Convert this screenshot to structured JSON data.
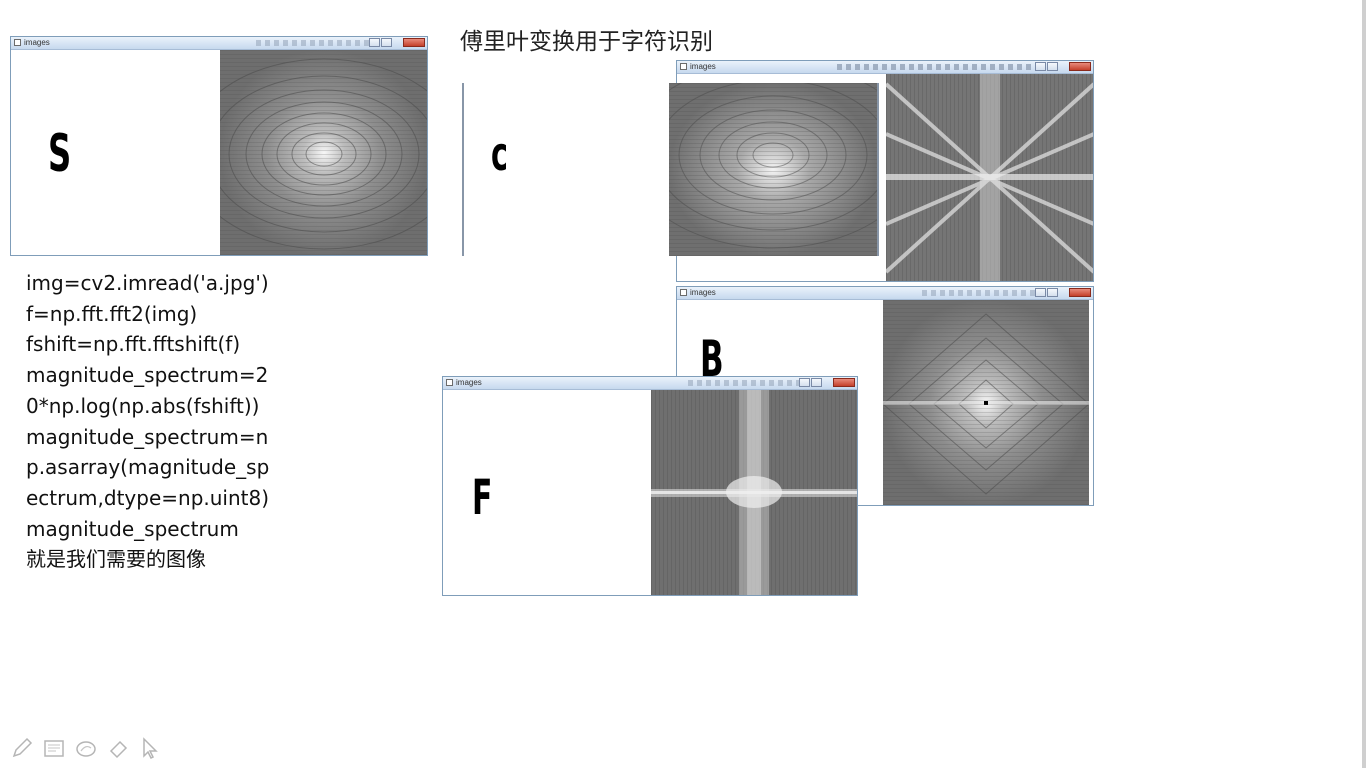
{
  "slide": {
    "title": "傅里叶变换用于字符识别"
  },
  "code": {
    "lines": [
      "img=cv2.imread('a.jpg')",
      "f=np.fft.fft2(img)",
      "fshift=np.fft.fftshift(f)",
      "magnitude_spectrum=20*np.log(np.abs(fshift))",
      "magnitude_spectrum=np.asarray(magnitude_spectrum,dtype=np.uint8)",
      "magnitude_spectrum",
      "就是我们需要的图像"
    ]
  },
  "windows": {
    "s": {
      "title": "images",
      "letter": "S"
    },
    "c": {
      "letter": "c"
    },
    "top_right": {
      "title": "images"
    },
    "b": {
      "title": "images",
      "letter": "B"
    },
    "f": {
      "title": "images",
      "letter": "F"
    }
  },
  "toolbar": {
    "icons": [
      "pen-icon",
      "text-box-icon",
      "ink-icon",
      "eraser-icon",
      "pointer-icon"
    ]
  },
  "colors": {
    "spectrum_dark": "#3e3e3e",
    "spectrum_mid": "#8c8c8c",
    "spectrum_bright": "#f2f2f2",
    "titlebar": "#c6d9ee",
    "close_button": "#c4402b"
  }
}
